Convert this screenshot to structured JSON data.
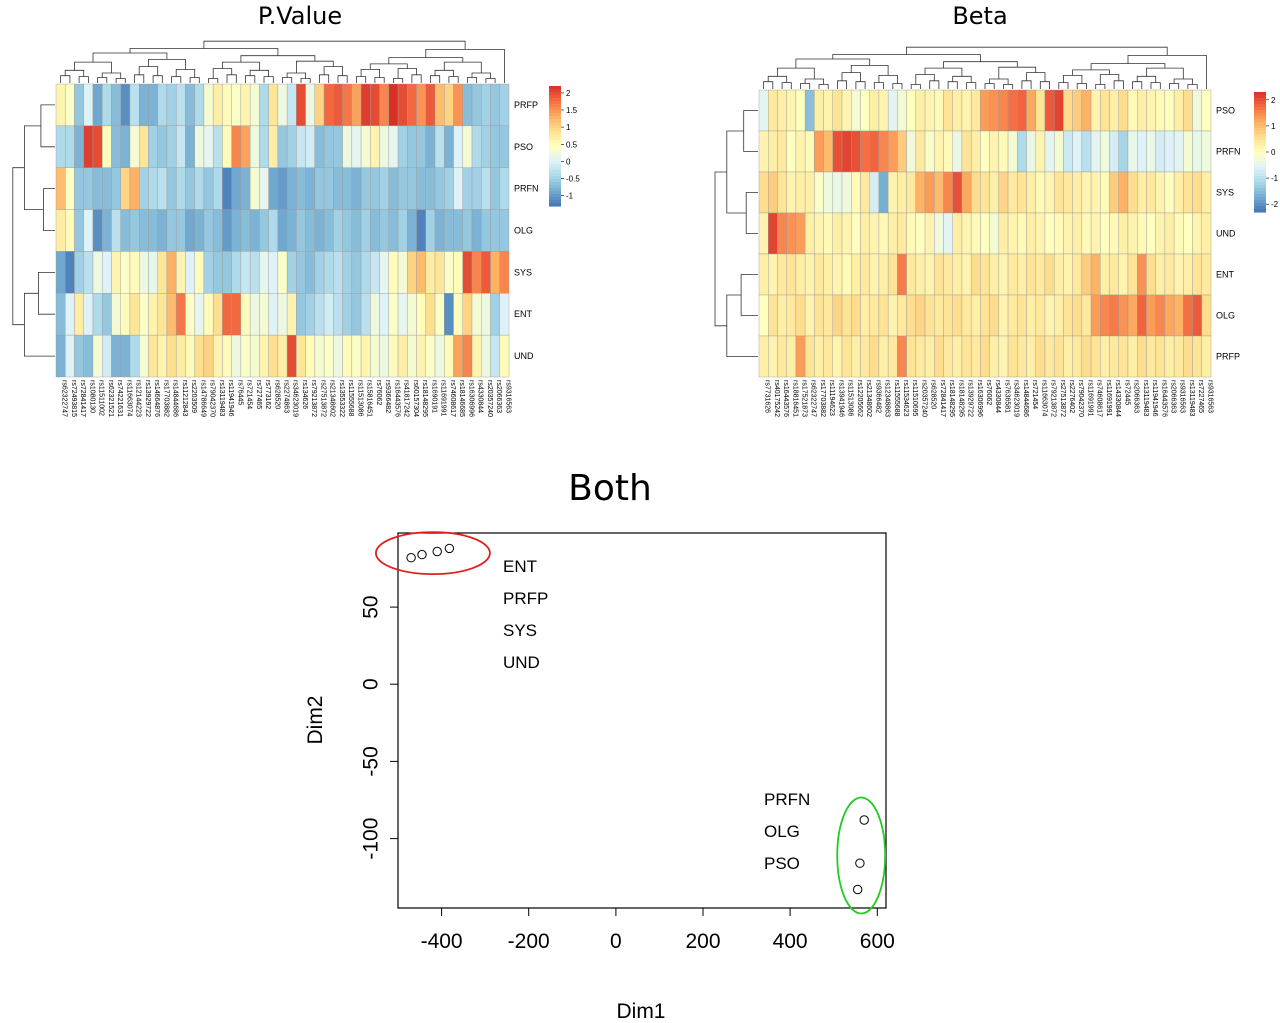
{
  "palette": [
    "#4575b4",
    "#74add1",
    "#abd9e9",
    "#e0f3f8",
    "#ffffbf",
    "#fee090",
    "#fdae61",
    "#f46d43",
    "#d73027"
  ],
  "chart_data": [
    {
      "type": "heatmap",
      "title": "P.Value",
      "rows": [
        "PRFP",
        "PSO",
        "PRFN",
        "OLG",
        "SYS",
        "ENT",
        "UND"
      ],
      "columns": [
        "rs62322747",
        "rs72493815",
        "rs72841417",
        "rs1080130",
        "rs11511002",
        "rs62321521",
        "rs74221631",
        "rs11663074",
        "rs12144223",
        "rs13929722",
        "rs14664876",
        "rs17703882",
        "rs14844686",
        "rs11212843",
        "rs2203509",
        "rs14786649",
        "rs79042370",
        "rs13119483",
        "rs11941946",
        "rs76445",
        "rs721454",
        "rs727465",
        "rs773162",
        "rs628520",
        "rs2274863",
        "rs34623019",
        "rs134626",
        "rs79213872",
        "rs27513872",
        "rs21348602",
        "rs13553322",
        "rs11555688",
        "rs11513086",
        "rs15816451",
        "rs76062",
        "rs9366482",
        "rs16443576",
        "rs41817242",
        "rs60157304",
        "rs18148295",
        "rs1690191",
        "rs11691991",
        "rs74608617",
        "rs18146685",
        "rs16306996",
        "rs4330844",
        "rs20357240",
        "rs2066363",
        "rs9316563"
      ],
      "values": [
        [
          0.6,
          0.4,
          -0.6,
          0.0,
          -0.9,
          -0.4,
          -0.7,
          -1.1,
          -0.3,
          -0.8,
          -0.8,
          -0.4,
          -0.5,
          -0.3,
          -0.7,
          -0.4,
          0.3,
          0.7,
          0.5,
          0.4,
          0.6,
          0.3,
          -0.4,
          0.8,
          0.2,
          -0.2,
          2.0,
          0.2,
          1.0,
          1.8,
          1.9,
          1.7,
          1.4,
          2.1,
          2.0,
          1.6,
          2.2,
          2.0,
          1.8,
          1.5,
          1.9,
          1.2,
          1.0,
          1.5,
          -0.7,
          -0.6,
          -0.5,
          -0.6,
          -0.5
        ],
        [
          -0.4,
          -0.4,
          -0.8,
          2.1,
          2.0,
          0.5,
          -0.7,
          -0.8,
          0.3,
          0.8,
          -0.5,
          -0.6,
          -0.5,
          -0.2,
          -0.8,
          0.2,
          0.1,
          -0.3,
          0.5,
          1.6,
          1.4,
          0.2,
          -0.4,
          0.7,
          -0.6,
          -0.5,
          -0.2,
          -0.1,
          -0.7,
          -0.6,
          -0.6,
          0.2,
          0.1,
          0.3,
          0.6,
          0.2,
          0.1,
          -0.5,
          -0.6,
          -0.6,
          -0.8,
          -0.3,
          -0.8,
          0.0,
          0.3,
          -0.4,
          -0.5,
          -0.6,
          -0.6
        ],
        [
          1.2,
          0.4,
          -0.6,
          -0.6,
          -0.7,
          -0.7,
          -0.6,
          1.0,
          1.3,
          -0.5,
          -0.4,
          -0.3,
          -0.6,
          -0.4,
          -0.6,
          -0.4,
          -0.6,
          -0.4,
          -1.2,
          -0.9,
          -0.8,
          0.3,
          0.1,
          -0.9,
          -1.0,
          -0.8,
          -0.7,
          -0.8,
          -0.6,
          -0.6,
          -0.7,
          -0.7,
          -0.8,
          -0.6,
          -0.6,
          -0.5,
          -0.7,
          -0.6,
          -0.6,
          -0.7,
          -0.7,
          -0.6,
          -0.5,
          0.0,
          -0.5,
          -0.5,
          -0.3,
          -0.6,
          -0.4
        ],
        [
          0.7,
          0.5,
          -0.6,
          0.0,
          -1.1,
          -0.8,
          -0.3,
          -0.7,
          -0.6,
          -0.7,
          -0.7,
          -0.8,
          -0.6,
          -0.6,
          -0.9,
          -0.8,
          -0.6,
          -0.7,
          -1.0,
          -0.8,
          -0.7,
          -0.8,
          -0.6,
          -0.4,
          -0.9,
          -0.8,
          -0.6,
          -0.7,
          -0.8,
          -0.7,
          -0.5,
          -0.6,
          -0.7,
          -0.5,
          -0.7,
          -0.6,
          -0.7,
          -0.5,
          -0.8,
          -1.2,
          -0.5,
          -0.8,
          -0.7,
          -0.7,
          -0.6,
          -0.8,
          -0.6,
          -0.6,
          -0.6
        ],
        [
          -0.9,
          -1.2,
          -0.5,
          -0.3,
          0.2,
          0.0,
          0.6,
          0.4,
          0.5,
          0.2,
          0.1,
          0.8,
          1.3,
          0.6,
          0.0,
          0.5,
          -0.5,
          -0.6,
          -0.6,
          -0.4,
          -0.2,
          -0.3,
          0.1,
          0.0,
          0.4,
          -0.5,
          -0.6,
          -0.7,
          -0.5,
          -0.4,
          -0.3,
          -0.5,
          -0.6,
          -0.4,
          -0.2,
          0.1,
          0.5,
          0.3,
          1.0,
          1.2,
          0.7,
          0.8,
          0.4,
          0.5,
          2.0,
          1.6,
          1.9,
          1.3,
          1.6
        ],
        [
          -0.7,
          0.0,
          0.7,
          0.0,
          -0.4,
          -0.6,
          0.3,
          0.5,
          0.8,
          0.4,
          0.6,
          0.8,
          1.2,
          1.7,
          0.4,
          0.1,
          0.5,
          0.9,
          1.8,
          1.8,
          0.5,
          0.2,
          0.3,
          0.0,
          0.2,
          0.6,
          -0.6,
          -0.5,
          -0.3,
          -0.1,
          -0.3,
          -0.5,
          -0.6,
          -0.3,
          0.2,
          0.0,
          0.4,
          0.1,
          0.3,
          0.5,
          0.9,
          0.4,
          -1.1,
          0.5,
          1.0,
          0.3,
          0.2,
          -0.5,
          0.0
        ],
        [
          -0.8,
          0.0,
          -0.6,
          -0.7,
          0.3,
          -0.1,
          -0.8,
          -0.8,
          -0.4,
          0.3,
          0.8,
          0.6,
          0.9,
          0.7,
          0.5,
          0.9,
          1.0,
          0.6,
          0.5,
          0.2,
          0.4,
          0.3,
          0.6,
          0.9,
          0.7,
          2.0,
          0.8,
          0.5,
          0.3,
          0.4,
          0.2,
          0.5,
          0.4,
          0.6,
          0.3,
          0.2,
          0.5,
          0.7,
          0.3,
          0.6,
          0.4,
          0.2,
          0.5,
          1.4,
          1.6,
          0.6,
          0.2,
          -0.2,
          0.5
        ]
      ],
      "legend_ticks": [
        "2",
        "1.5",
        "1",
        "0.5",
        "0",
        "-0.5",
        "-1"
      ],
      "vmin": -1.3,
      "vmax": 2.2
    },
    {
      "type": "heatmap",
      "title": "Beta",
      "rows": [
        "PSO",
        "PRFN",
        "SYS",
        "UND",
        "ENT",
        "OLG",
        "PRFP"
      ],
      "columns": [
        "rs7731626",
        "rs40175242",
        "rs16443576",
        "rs18816451",
        "rs17521873",
        "rs62322747",
        "rs17703882",
        "rs11194623",
        "rs13941946",
        "rs11513086",
        "rs12205662",
        "rs21348602",
        "rs9366482",
        "rs12348863",
        "rs11555688",
        "rs11534623",
        "rs11510695",
        "rs20357240",
        "rs628520",
        "rs72841417",
        "rs18148295",
        "rs18148295",
        "rs13929722",
        "rs16306996",
        "rs76062",
        "rs4330844",
        "rs7636581",
        "rs34623019",
        "rs14844686",
        "rs721454",
        "rs11663074",
        "rs79213872",
        "rs27513872",
        "rs2276402",
        "rs79042370",
        "rs11691991",
        "rs74608617",
        "rs11691991",
        "rs14330844",
        "rs72445",
        "rs2066363",
        "rs13119483",
        "rs11941946",
        "rs16443576",
        "rs2066363",
        "rs9316563",
        "rs13119483",
        "rs7227465",
        "rs9316563"
      ],
      "values": [
        [
          -0.5,
          0.4,
          0.3,
          0.2,
          0.0,
          -1.5,
          0.3,
          0.2,
          0.5,
          0.2,
          -0.2,
          0.0,
          0.3,
          0.2,
          -0.5,
          -0.2,
          0.0,
          0.3,
          0.2,
          0.1,
          0.5,
          0.3,
          0.2,
          0.4,
          1.3,
          1.4,
          1.5,
          1.7,
          1.8,
          1.2,
          0.5,
          1.9,
          2.1,
          0.6,
          0.8,
          1.1,
          0.2,
          0.5,
          0.3,
          0.6,
          0.1,
          0.3,
          0.2,
          0.1,
          0.0,
          0.3,
          0.6,
          -0.3,
          0.0
        ],
        [
          0.2,
          0.3,
          0.4,
          0.0,
          0.2,
          0.1,
          1.3,
          1.0,
          2.0,
          2.1,
          2.0,
          1.7,
          1.8,
          1.5,
          1.3,
          0.8,
          -0.3,
          0.4,
          -0.1,
          0.2,
          0.1,
          -0.4,
          0.5,
          0.3,
          0.0,
          0.2,
          0.1,
          -0.2,
          -1.1,
          -0.4,
          0.2,
          -0.5,
          -0.2,
          -0.8,
          -0.6,
          -1.0,
          -0.5,
          -0.3,
          -0.7,
          -1.2,
          -0.4,
          -0.6,
          -0.4,
          -0.7,
          -0.6,
          -0.5,
          -0.2,
          -0.4,
          -0.3
        ],
        [
          0.6,
          0.8,
          0.5,
          0.2,
          0.3,
          0.3,
          -0.1,
          -0.3,
          -0.4,
          -0.3,
          0.1,
          0.4,
          -0.7,
          -1.7,
          0.2,
          0.3,
          0.4,
          1.1,
          1.3,
          1.0,
          1.5,
          2.0,
          1.2,
          0.6,
          0.5,
          0.3,
          0.7,
          0.4,
          0.5,
          0.3,
          0.1,
          0.2,
          0.5,
          0.4,
          0.3,
          0.2,
          0.2,
          0.1,
          0.8,
          1.1,
          0.6,
          0.3,
          0.4,
          0.2,
          0.0,
          0.3,
          0.5,
          0.6,
          0.3
        ],
        [
          0.2,
          2.1,
          1.5,
          1.4,
          1.3,
          0.3,
          0.2,
          0.1,
          0.3,
          0.2,
          0.0,
          0.3,
          0.2,
          0.1,
          0.3,
          0.4,
          0.1,
          0.0,
          0.2,
          -0.3,
          -0.5,
          0.3,
          0.2,
          0.1,
          0.0,
          -0.2,
          0.3,
          0.2,
          0.1,
          0.3,
          0.2,
          0.0,
          0.1,
          0.2,
          0.3,
          0.1,
          0.2,
          0.0,
          0.1,
          0.3,
          0.2,
          0.1,
          0.0,
          0.2,
          0.3,
          0.1,
          0.0,
          0.2,
          0.3
        ],
        [
          0.3,
          0.2,
          0.4,
          0.5,
          0.3,
          0.2,
          0.4,
          0.3,
          0.2,
          0.1,
          0.3,
          0.4,
          0.2,
          0.3,
          0.5,
          1.6,
          0.4,
          0.3,
          0.2,
          0.5,
          0.4,
          0.3,
          0.2,
          0.6,
          0.5,
          0.3,
          0.2,
          0.4,
          0.3,
          0.5,
          0.4,
          0.6,
          0.3,
          0.2,
          0.4,
          0.8,
          1.1,
          0.3,
          0.4,
          0.2,
          0.5,
          1.4,
          0.6,
          0.3,
          0.4,
          0.2,
          0.3,
          0.5,
          0.4
        ],
        [
          0.0,
          0.5,
          0.3,
          0.4,
          0.6,
          0.2,
          0.5,
          0.4,
          0.7,
          0.5,
          0.6,
          0.3,
          0.4,
          0.5,
          0.2,
          0.4,
          0.6,
          0.7,
          0.5,
          0.4,
          0.5,
          0.6,
          0.4,
          0.3,
          0.5,
          0.6,
          0.2,
          0.4,
          0.5,
          0.3,
          0.4,
          0.2,
          0.3,
          0.5,
          0.6,
          0.4,
          1.3,
          1.5,
          1.6,
          1.4,
          1.2,
          1.8,
          1.3,
          1.5,
          1.2,
          1.1,
          1.7,
          1.9,
          0.6
        ],
        [
          0.3,
          0.2,
          0.4,
          0.3,
          1.3,
          0.5,
          0.3,
          0.4,
          0.2,
          0.5,
          0.3,
          0.4,
          0.6,
          0.3,
          0.4,
          1.5,
          0.5,
          0.4,
          0.3,
          0.6,
          0.4,
          0.3,
          0.5,
          0.4,
          0.6,
          0.3,
          0.2,
          0.5,
          0.4,
          0.3,
          0.6,
          0.4,
          0.5,
          0.3,
          0.4,
          0.6,
          0.5,
          0.3,
          0.4,
          0.5,
          0.3,
          0.6,
          0.4,
          0.5,
          0.3,
          0.4,
          0.6,
          0.5,
          0.3
        ]
      ],
      "legend_ticks": [
        "2",
        "1",
        "0",
        "-1",
        "-2"
      ],
      "vmin": -2.3,
      "vmax": 2.3
    },
    {
      "type": "scatter",
      "title": "Both",
      "xlabel": "Dim1",
      "ylabel": "Dim2",
      "xlim": [
        -500,
        620
      ],
      "ylim": [
        -145,
        98
      ],
      "xticks": [
        -400,
        -200,
        0,
        200,
        400,
        600
      ],
      "yticks": [
        50,
        0,
        -50,
        -100
      ],
      "points": [
        {
          "x": -470,
          "y": 82
        },
        {
          "x": -445,
          "y": 84
        },
        {
          "x": -410,
          "y": 86
        },
        {
          "x": -382,
          "y": 88
        },
        {
          "x": 570,
          "y": -88
        },
        {
          "x": 560,
          "y": -116
        },
        {
          "x": 555,
          "y": -133
        }
      ],
      "groups": [
        {
          "labels": [
            "ENT",
            "PRFP",
            "SYS",
            "UND"
          ],
          "ellipse_color": "#e02020"
        },
        {
          "labels": [
            "PRFN",
            "OLG",
            "PSO"
          ],
          "ellipse_color": "#22cc22"
        }
      ]
    }
  ]
}
